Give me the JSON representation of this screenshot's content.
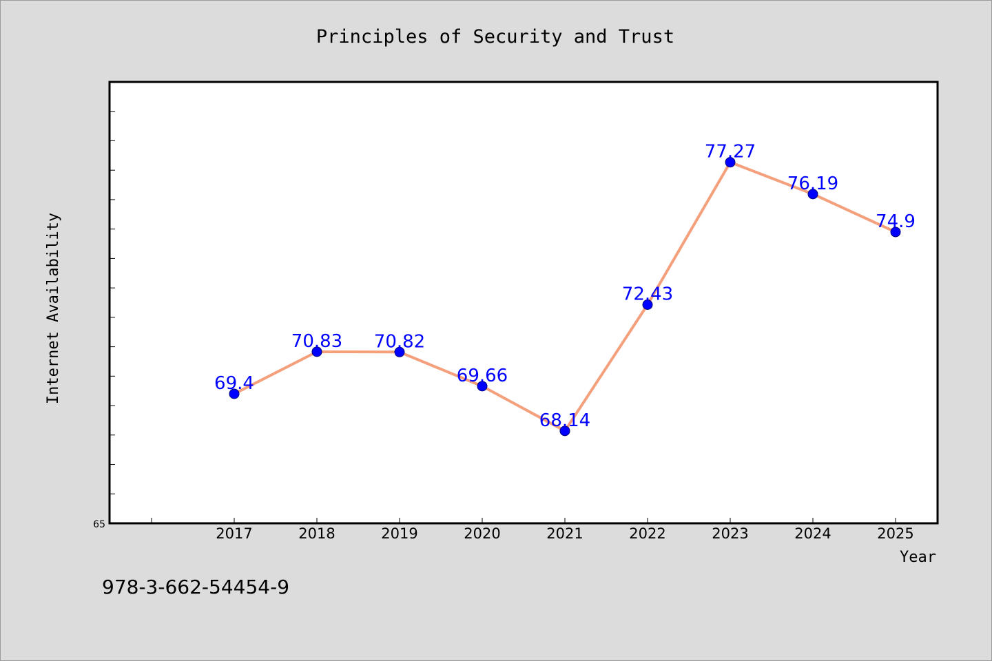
{
  "chart_data": {
    "type": "line",
    "title": "Principles of Security and Trust",
    "xlabel": "Year",
    "ylabel": "Internet Availability",
    "x": [
      "2017",
      "2018",
      "2019",
      "2020",
      "2021",
      "2022",
      "2023",
      "2024",
      "2025"
    ],
    "series": [
      {
        "values": [
          69.4,
          70.83,
          70.82,
          69.66,
          68.14,
          72.43,
          77.27,
          76.19,
          74.9
        ]
      }
    ],
    "data_labels": [
      "69.4",
      "70.83",
      "70.82",
      "69.66",
      "68.14",
      "72.43",
      "77.27",
      "76.19",
      "74.9"
    ],
    "ylim": [
      65,
      80
    ],
    "ytick_labels": [
      "65"
    ],
    "grid": false,
    "legend": "none",
    "colors": {
      "line": "#f4a07c",
      "marker": "#0000ff",
      "data_label": "#0000ff",
      "background": "#dcdcdc",
      "plot_background": "#ffffff"
    }
  },
  "footer_text": "978-3-662-54454-9"
}
